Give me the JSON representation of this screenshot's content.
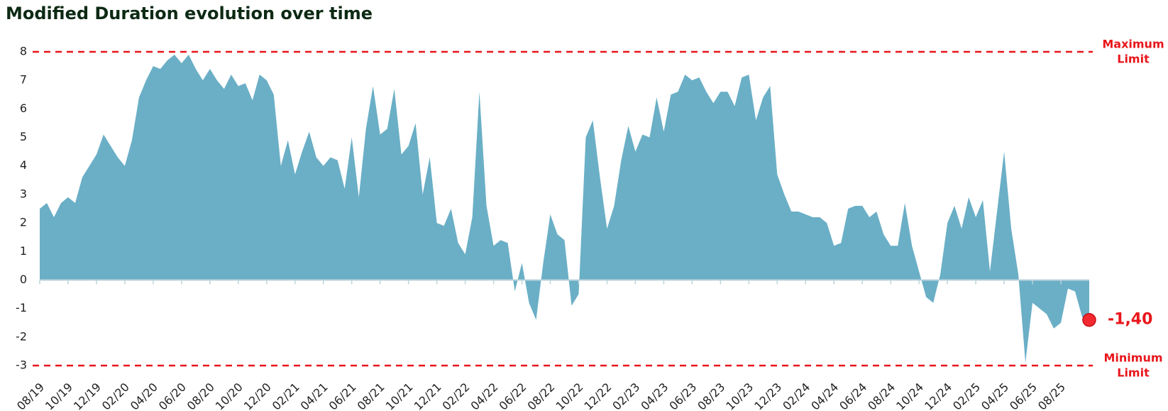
{
  "chart_data": {
    "type": "area",
    "title": "Modified Duration evolution over time",
    "color": "#6aafc6",
    "categories": [
      "08/19",
      null,
      null,
      null,
      "10/19",
      null,
      null,
      null,
      "12/19",
      null,
      null,
      null,
      "02/20",
      null,
      null,
      null,
      "04/20",
      null,
      null,
      null,
      "06/20",
      null,
      null,
      null,
      "08/20",
      null,
      null,
      null,
      "10/20",
      null,
      null,
      null,
      "12/20",
      null,
      null,
      null,
      "02/21",
      null,
      null,
      null,
      "04/21",
      null,
      null,
      null,
      "06/21",
      null,
      null,
      null,
      "08/21",
      null,
      null,
      null,
      "10/21",
      null,
      null,
      null,
      "12/21",
      null,
      null,
      null,
      "02/22",
      null,
      null,
      null,
      "04/22",
      null,
      null,
      null,
      "06/22",
      null,
      null,
      null,
      "08/22",
      null,
      null,
      null,
      "10/22",
      null,
      null,
      null,
      "12/22",
      null,
      null,
      null,
      "02/23",
      null,
      null,
      null,
      "04/23",
      null,
      null,
      null,
      "06/23",
      null,
      null,
      null,
      "08/23",
      null,
      null,
      null,
      "10/23",
      null,
      null,
      null,
      "12/23",
      null,
      null,
      null,
      "02/24",
      null,
      null,
      null,
      "04/24",
      null,
      null,
      null,
      "06/24",
      null,
      null,
      null,
      "08/24",
      null,
      null,
      null,
      "10/24",
      null,
      null,
      null,
      "12/24",
      null,
      null,
      null,
      "02/25",
      null,
      null,
      null,
      "04/25",
      null,
      null,
      null,
      "06/25",
      null,
      null,
      null,
      "08/25",
      null,
      null,
      null,
      null
    ],
    "values": [
      2.5,
      2.7,
      2.2,
      2.7,
      2.9,
      2.7,
      3.6,
      4.0,
      4.4,
      5.1,
      4.7,
      4.3,
      4.0,
      4.9,
      6.4,
      7.0,
      7.5,
      7.4,
      7.7,
      7.9,
      7.6,
      7.9,
      7.4,
      7.0,
      7.4,
      7.0,
      6.7,
      7.2,
      6.8,
      6.9,
      6.3,
      7.2,
      7.0,
      6.5,
      4.0,
      4.9,
      3.7,
      4.5,
      5.2,
      4.3,
      4.0,
      4.3,
      4.2,
      3.2,
      5.0,
      2.9,
      5.3,
      6.8,
      5.1,
      5.3,
      6.7,
      4.4,
      4.7,
      5.5,
      3.0,
      4.3,
      2.0,
      1.9,
      2.5,
      1.3,
      0.9,
      2.2,
      6.6,
      2.6,
      1.2,
      1.4,
      1.3,
      -0.4,
      0.6,
      -0.8,
      -1.4,
      0.6,
      2.3,
      1.6,
      1.4,
      -0.9,
      -0.5,
      5.0,
      5.6,
      3.6,
      1.8,
      2.6,
      4.2,
      5.4,
      4.5,
      5.1,
      5.0,
      6.4,
      5.2,
      6.5,
      6.6,
      7.2,
      7.0,
      7.1,
      6.6,
      6.2,
      6.6,
      6.6,
      6.1,
      7.1,
      7.2,
      5.6,
      6.4,
      6.8,
      3.7,
      3.0,
      2.4,
      2.4,
      2.3,
      2.2,
      2.2,
      2.0,
      1.2,
      1.3,
      2.5,
      2.6,
      2.6,
      2.2,
      2.4,
      1.6,
      1.2,
      1.2,
      2.7,
      1.2,
      0.3,
      -0.6,
      -0.8,
      0.2,
      2.0,
      2.6,
      1.8,
      2.9,
      2.2,
      2.8,
      0.3,
      2.4,
      4.5,
      1.8,
      0.2,
      -2.9,
      -0.8,
      -1.0,
      -1.2,
      -1.7,
      -1.5,
      -0.3,
      -0.4,
      -1.3,
      -1.4
    ],
    "value_labels": [
      null,
      null,
      null,
      null,
      null,
      null,
      null,
      null,
      null,
      null,
      null,
      null,
      null,
      null,
      null,
      null,
      null,
      null,
      null,
      null,
      null,
      null,
      null,
      null,
      null,
      null,
      null,
      null,
      null,
      null,
      null,
      null,
      null,
      null,
      null,
      null,
      null,
      null,
      null,
      null,
      null,
      null,
      null,
      null,
      null,
      null,
      null,
      null,
      null,
      null,
      null,
      null,
      null,
      null,
      null,
      null,
      null,
      null,
      null,
      null,
      null,
      null,
      null,
      null,
      null,
      null,
      null,
      null,
      null,
      null,
      null,
      null,
      null,
      null,
      null,
      null,
      null,
      null,
      null,
      null,
      null,
      null,
      null,
      null,
      null,
      null,
      null,
      null,
      null,
      null,
      null,
      null,
      null,
      null,
      null,
      null,
      null,
      null,
      null,
      null,
      null,
      null,
      null,
      null,
      null,
      null,
      null,
      null,
      null,
      null,
      null,
      null,
      null,
      null,
      null,
      null,
      null,
      null,
      null,
      null,
      null,
      null,
      null,
      null,
      null,
      null,
      null,
      null,
      null,
      null,
      null,
      null,
      null,
      null,
      null,
      null,
      null,
      null,
      null,
      null,
      null,
      null,
      null,
      null,
      null,
      null,
      null,
      null,
      "-1,40"
    ],
    "ylim": [
      -3,
      8
    ],
    "yticks": [
      -3,
      -2,
      -1,
      0,
      1,
      2,
      3,
      4,
      5,
      6,
      7,
      8
    ],
    "reference_lines": [
      {
        "value": 8,
        "label": [
          "Maximum",
          "Limit"
        ],
        "color": "#e8161b"
      },
      {
        "value": -3,
        "label": [
          "Minimum",
          "Limit"
        ],
        "color": "#e8161b"
      }
    ]
  }
}
